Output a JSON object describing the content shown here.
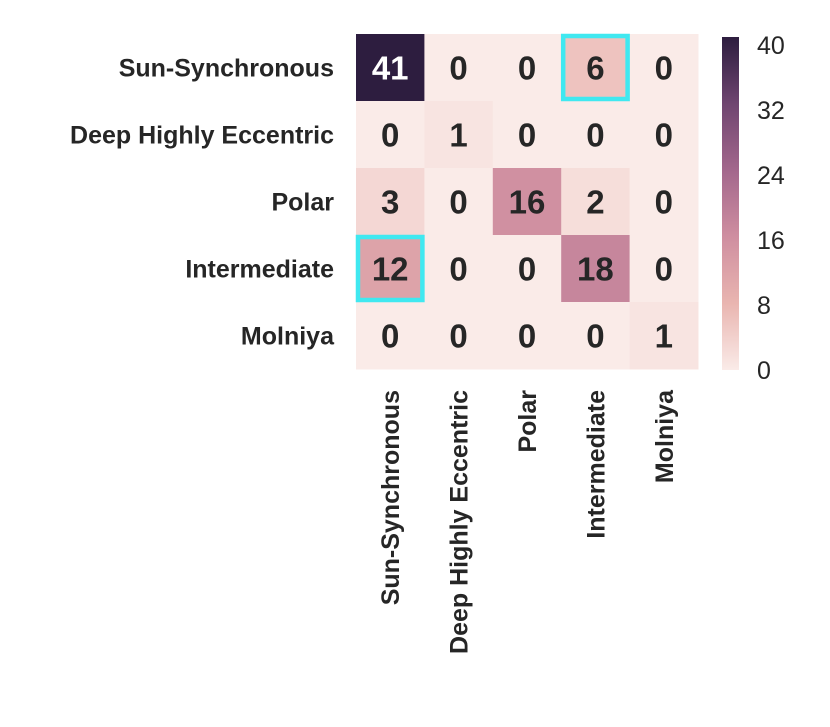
{
  "chart_data": {
    "type": "heatmap",
    "rows": [
      "Sun-Synchronous",
      "Deep Highly Eccentric",
      "Polar",
      "Intermediate",
      "Molniya"
    ],
    "columns": [
      "Sun-Synchronous",
      "Deep Highly Eccentric",
      "Polar",
      "Intermediate",
      "Molniya"
    ],
    "values": [
      [
        41,
        0,
        0,
        6,
        0
      ],
      [
        0,
        1,
        0,
        0,
        0
      ],
      [
        3,
        0,
        16,
        2,
        0
      ],
      [
        12,
        0,
        0,
        18,
        0
      ],
      [
        0,
        0,
        0,
        0,
        1
      ]
    ],
    "highlighted_cells": [
      [
        0,
        3
      ],
      [
        3,
        0
      ]
    ],
    "highlight_color": "#40e8f0",
    "colorbar": {
      "vmin": 0,
      "vmax": 41,
      "ticks": [
        "0",
        "8",
        "16",
        "24",
        "32",
        "40"
      ],
      "tick_values": [
        0,
        8,
        16,
        24,
        32,
        40
      ],
      "colors": [
        "#faebe8",
        "#e9b5b0",
        "#cf8ea0",
        "#a3678c",
        "#6f4570",
        "#2d1d3f"
      ]
    },
    "title": "",
    "xlabel": "",
    "ylabel": ""
  }
}
